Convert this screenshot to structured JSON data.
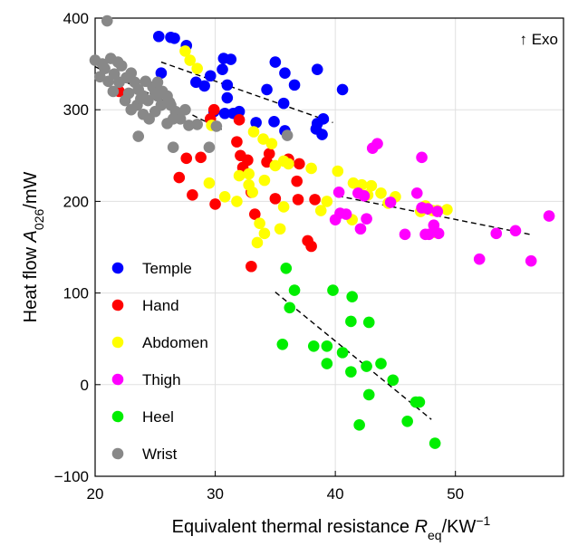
{
  "chart_data": {
    "type": "scatter",
    "xlabel": {
      "main": "Equivalent thermal resistance ",
      "var": "R",
      "sub": "eq",
      "unit": "/KW",
      "sup": "−1"
    },
    "ylabel": {
      "main": "Heat flow ",
      "var": "A",
      "sub": "026",
      "unit": "/mW"
    },
    "annotation": "↑ Exo",
    "xlim": [
      20,
      59
    ],
    "ylim": [
      -100,
      400
    ],
    "xticks": [
      20,
      30,
      40,
      50
    ],
    "xtick_labels": [
      "20",
      "30",
      "40",
      "50"
    ],
    "yticks": [
      -100,
      0,
      100,
      200,
      300,
      400
    ],
    "ytick_labels": [
      "−100",
      "0",
      "100",
      "200",
      "300",
      "400"
    ],
    "grid": true,
    "legend_position": "bottom-left",
    "series": [
      {
        "name": "Temple",
        "color": "#0000ff",
        "points": [
          [
            25.3,
            380
          ],
          [
            26.3,
            379
          ],
          [
            26.6,
            378
          ],
          [
            27.6,
            370
          ],
          [
            25.5,
            340
          ],
          [
            28.4,
            330
          ],
          [
            29.6,
            337
          ],
          [
            29.1,
            326
          ],
          [
            30.7,
            356
          ],
          [
            31.3,
            355
          ],
          [
            30.6,
            344
          ],
          [
            31.0,
            327
          ],
          [
            31.0,
            313
          ],
          [
            29.9,
            298
          ],
          [
            30.8,
            296
          ],
          [
            31.5,
            296
          ],
          [
            32.0,
            298
          ],
          [
            35.0,
            352
          ],
          [
            35.8,
            340
          ],
          [
            36.6,
            327
          ],
          [
            34.3,
            322
          ],
          [
            35.7,
            307
          ],
          [
            33.4,
            286
          ],
          [
            34.9,
            287
          ],
          [
            35.8,
            277
          ],
          [
            38.5,
            344
          ],
          [
            39.0,
            290
          ],
          [
            38.5,
            285
          ],
          [
            38.4,
            279
          ],
          [
            38.9,
            273
          ],
          [
            40.6,
            322
          ]
        ]
      },
      {
        "name": "Hand",
        "color": "#ff0000",
        "points": [
          [
            22.0,
            320
          ],
          [
            29.6,
            290
          ],
          [
            29.9,
            300
          ],
          [
            32.0,
            289
          ],
          [
            31.8,
            265
          ],
          [
            32.1,
            250
          ],
          [
            32.7,
            245
          ],
          [
            34.3,
            243
          ],
          [
            36.1,
            246
          ],
          [
            37.0,
            241
          ],
          [
            36.8,
            222
          ],
          [
            36.9,
            202
          ],
          [
            35.0,
            203
          ],
          [
            34.5,
            252
          ],
          [
            32.3,
            237
          ],
          [
            27.0,
            226
          ],
          [
            27.6,
            247
          ],
          [
            28.8,
            248
          ],
          [
            28.1,
            207
          ],
          [
            30.0,
            197
          ],
          [
            33.0,
            210
          ],
          [
            33.3,
            186
          ],
          [
            33.0,
            129
          ],
          [
            37.7,
            157
          ],
          [
            38.0,
            151
          ],
          [
            38.3,
            202
          ]
        ]
      },
      {
        "name": "Abdomen",
        "color": "#ffff00",
        "points": [
          [
            27.5,
            364
          ],
          [
            27.9,
            354
          ],
          [
            28.5,
            345
          ],
          [
            29.7,
            283
          ],
          [
            30.8,
            205
          ],
          [
            29.5,
            220
          ],
          [
            31.8,
            200
          ],
          [
            32.8,
            218
          ],
          [
            33.1,
            210
          ],
          [
            32.8,
            230
          ],
          [
            33.2,
            276
          ],
          [
            34.0,
            268
          ],
          [
            34.7,
            263
          ],
          [
            33.7,
            176
          ],
          [
            33.5,
            155
          ],
          [
            34.1,
            165
          ],
          [
            35.4,
            170
          ],
          [
            35.7,
            194
          ],
          [
            36.1,
            241
          ],
          [
            35.7,
            244
          ],
          [
            35.0,
            239
          ],
          [
            32.0,
            228
          ],
          [
            34.1,
            223
          ],
          [
            38.0,
            236
          ],
          [
            39.3,
            200
          ],
          [
            40.2,
            233
          ],
          [
            38.8,
            190
          ],
          [
            41.4,
            180
          ],
          [
            41.5,
            220
          ],
          [
            42.2,
            218
          ],
          [
            43.0,
            217
          ],
          [
            43.8,
            209
          ],
          [
            42.7,
            207
          ],
          [
            44.4,
            198
          ],
          [
            45.0,
            205
          ],
          [
            48.5,
            190
          ],
          [
            49.3,
            191
          ],
          [
            47.1,
            189
          ],
          [
            48.1,
            190
          ],
          [
            47.5,
            195
          ],
          [
            48.3,
            166
          ]
        ]
      },
      {
        "name": "Thigh",
        "color": "#ff00ff",
        "points": [
          [
            40.3,
            210
          ],
          [
            40.4,
            187
          ],
          [
            40.9,
            186
          ],
          [
            40.0,
            180
          ],
          [
            41.9,
            209
          ],
          [
            42.4,
            206
          ],
          [
            42.1,
            170
          ],
          [
            42.6,
            181
          ],
          [
            43.1,
            258
          ],
          [
            43.5,
            263
          ],
          [
            44.6,
            199
          ],
          [
            45.8,
            164
          ],
          [
            46.8,
            209
          ],
          [
            47.2,
            248
          ],
          [
            47.2,
            193
          ],
          [
            47.7,
            192
          ],
          [
            48.2,
            174
          ],
          [
            48.5,
            189
          ],
          [
            47.5,
            164
          ],
          [
            47.8,
            164
          ],
          [
            48.6,
            165
          ],
          [
            52.0,
            137
          ],
          [
            53.4,
            165
          ],
          [
            55.0,
            168
          ],
          [
            56.3,
            135
          ],
          [
            57.8,
            184
          ]
        ]
      },
      {
        "name": "Heel",
        "color": "#00ee00",
        "points": [
          [
            35.9,
            127
          ],
          [
            36.6,
            103
          ],
          [
            36.2,
            84
          ],
          [
            35.6,
            44
          ],
          [
            38.2,
            42
          ],
          [
            39.3,
            42
          ],
          [
            39.3,
            23
          ],
          [
            39.8,
            103
          ],
          [
            40.6,
            35
          ],
          [
            41.3,
            69
          ],
          [
            41.4,
            96
          ],
          [
            41.3,
            14
          ],
          [
            42.6,
            20
          ],
          [
            42.8,
            68
          ],
          [
            43.8,
            23
          ],
          [
            42.8,
            -11
          ],
          [
            42.0,
            -44
          ],
          [
            44.8,
            5
          ],
          [
            46.0,
            -40
          ],
          [
            46.7,
            -19
          ],
          [
            47.0,
            -19
          ],
          [
            48.3,
            -64
          ]
        ]
      },
      {
        "name": "Wrist",
        "color": "#888888",
        "points": [
          [
            21.0,
            397
          ],
          [
            20.0,
            354
          ],
          [
            20.4,
            336
          ],
          [
            20.8,
            345
          ],
          [
            21.3,
            356
          ],
          [
            21.6,
            339
          ],
          [
            21.9,
            352
          ],
          [
            22.2,
            348
          ],
          [
            22.6,
            335
          ],
          [
            23.0,
            340
          ],
          [
            23.3,
            330
          ],
          [
            23.6,
            322
          ],
          [
            24.0,
            315
          ],
          [
            24.4,
            310
          ],
          [
            24.8,
            325
          ],
          [
            25.2,
            330
          ],
          [
            25.6,
            320
          ],
          [
            26.0,
            315
          ],
          [
            26.3,
            305
          ],
          [
            26.7,
            298
          ],
          [
            27.1,
            290
          ],
          [
            27.5,
            300
          ],
          [
            21.5,
            320
          ],
          [
            22.0,
            330
          ],
          [
            22.5,
            310
          ],
          [
            23.0,
            300
          ],
          [
            23.5,
            305
          ],
          [
            24.0,
            295
          ],
          [
            24.5,
            290
          ],
          [
            25.0,
            298
          ],
          [
            25.5,
            305
          ],
          [
            26.0,
            285
          ],
          [
            26.5,
            290
          ],
          [
            22.8,
            318
          ],
          [
            23.8,
            312
          ],
          [
            25.0,
            318
          ],
          [
            26.2,
            308
          ],
          [
            23.6,
            271
          ],
          [
            25.2,
            315
          ],
          [
            26.5,
            259
          ],
          [
            27.8,
            283
          ],
          [
            28.5,
            284
          ],
          [
            29.5,
            259
          ],
          [
            30.1,
            282
          ],
          [
            36.0,
            272
          ],
          [
            24.2,
            331
          ],
          [
            21.1,
            331
          ],
          [
            20.6,
            350
          ]
        ]
      }
    ],
    "trendlines": [
      {
        "x": [
          25.5,
          39.8
        ],
        "y": [
          352,
          286
        ]
      },
      {
        "x": [
          40.2,
          56.2
        ],
        "y": [
          206,
          164
        ]
      },
      {
        "x": [
          35.0,
          48.0
        ],
        "y": [
          101,
          -38
        ]
      },
      {
        "x": [
          20.0,
          30.6
        ],
        "y": [
          347,
          278
        ]
      }
    ],
    "colors": {
      "grid": "#e0e0e0",
      "trend": "#000000"
    }
  }
}
